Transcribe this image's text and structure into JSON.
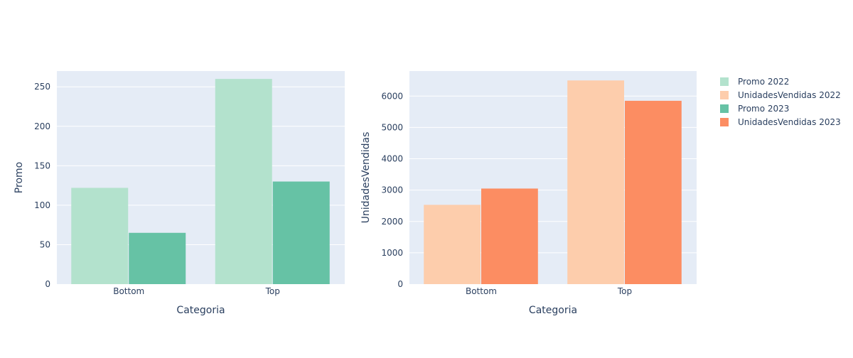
{
  "chart_data": [
    {
      "type": "bar",
      "categories": [
        "Bottom",
        "Top"
      ],
      "xlabel": "Categoria",
      "ylabel": "Promo",
      "ylim": [
        0,
        270
      ],
      "yticks": [
        0,
        50,
        100,
        150,
        200,
        250
      ],
      "grid": true,
      "series": [
        {
          "name": "Promo 2022",
          "values": [
            122,
            260
          ],
          "color": "#b3e2cd"
        },
        {
          "name": "Promo 2023",
          "values": [
            65,
            130
          ],
          "color": "#66c2a5"
        }
      ]
    },
    {
      "type": "bar",
      "categories": [
        "Bottom",
        "Top"
      ],
      "xlabel": "Categoria",
      "ylabel": "UnidadesVendidas",
      "ylim": [
        0,
        6800
      ],
      "yticks": [
        0,
        1000,
        2000,
        3000,
        4000,
        5000,
        6000
      ],
      "grid": true,
      "series": [
        {
          "name": "UnidadesVendidas 2022",
          "values": [
            2530,
            6500
          ],
          "color": "#fdcdac"
        },
        {
          "name": "UnidadesVendidas 2023",
          "values": [
            3050,
            5850
          ],
          "color": "#fc8d62"
        }
      ]
    }
  ],
  "legend": {
    "placement": "right",
    "items": [
      {
        "label": "Promo 2022",
        "color": "#b3e2cd"
      },
      {
        "label": "UnidadesVendidas 2022",
        "color": "#fdcdac"
      },
      {
        "label": "Promo 2023",
        "color": "#66c2a5"
      },
      {
        "label": "UnidadesVendidas 2023",
        "color": "#fc8d62"
      }
    ]
  }
}
